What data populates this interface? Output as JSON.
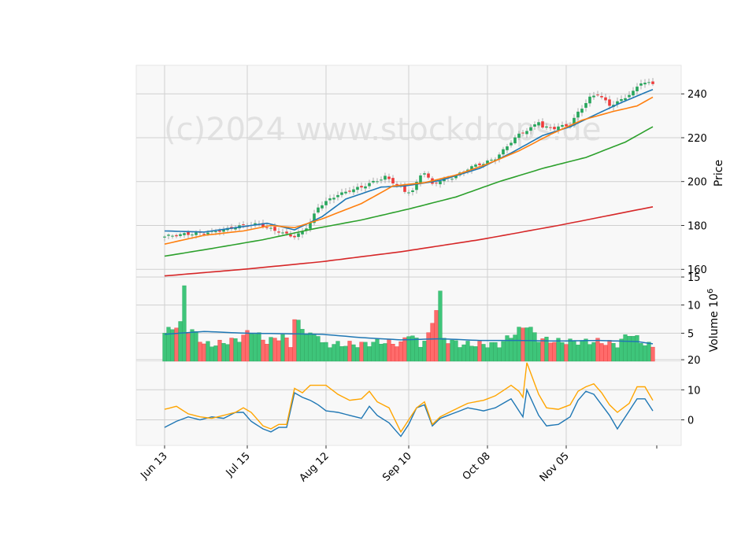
{
  "watermark": "(c)2024 www.stockdrops.de",
  "colors": {
    "up": "#26a65b",
    "down": "#ef3b3b",
    "ma_fast": "#1f77b4",
    "ma_mid": "#ff7f0e",
    "ma_slow": "#2ca02c",
    "ma_long": "#d62728",
    "vol_avg": "#1f77b4",
    "osc_a": "#1f77b4",
    "osc_b": "#ffa500",
    "panel_bg": "#f8f8f8",
    "grid": "#d0d0d0"
  },
  "chart_data": {
    "type": "candlestick",
    "x_tick_labels": [
      "Jun 13",
      "Jul 15",
      "Aug 12",
      "Sep 10",
      "Oct 08",
      "Nov 05"
    ],
    "x_tick_index": [
      0,
      21,
      41,
      62,
      82,
      102
    ],
    "n_sessions": 125,
    "price": {
      "ylabel": "Price",
      "yticks": [
        160,
        180,
        200,
        220,
        240
      ],
      "ylim": [
        156.5,
        253
      ],
      "open_close_anchors": [
        [
          0,
          174.5
        ],
        [
          5,
          176.5
        ],
        [
          10,
          176.0
        ],
        [
          15,
          178.5
        ],
        [
          20,
          179.5
        ],
        [
          24,
          181.0
        ],
        [
          27,
          178.5
        ],
        [
          30,
          176.0
        ],
        [
          33,
          175.0
        ],
        [
          35,
          177.5
        ],
        [
          37,
          181.5
        ],
        [
          39,
          188.0
        ],
        [
          41,
          190.5
        ],
        [
          44,
          194.5
        ],
        [
          47,
          196.0
        ],
        [
          50,
          197.0
        ],
        [
          53,
          200.0
        ],
        [
          56,
          202.5
        ],
        [
          58,
          199.5
        ],
        [
          60,
          197.0
        ],
        [
          61,
          195.0
        ],
        [
          63,
          196.0
        ],
        [
          65,
          203.5
        ],
        [
          66,
          204.5
        ],
        [
          68,
          198.5
        ],
        [
          70,
          200.0
        ],
        [
          73,
          202.0
        ],
        [
          77,
          206.0
        ],
        [
          81,
          208.0
        ],
        [
          84,
          211.0
        ],
        [
          88,
          218.0
        ],
        [
          90,
          221.0
        ],
        [
          93,
          224.5
        ],
        [
          95,
          228.0
        ],
        [
          96,
          225.0
        ],
        [
          99,
          224.0
        ],
        [
          103,
          226.0
        ],
        [
          105,
          232.0
        ],
        [
          108,
          238.0
        ],
        [
          110,
          239.5
        ],
        [
          113,
          235.0
        ],
        [
          116,
          237.5
        ],
        [
          119,
          240.5
        ],
        [
          121,
          245.0
        ],
        [
          124,
          245.0
        ]
      ]
    },
    "moving_averages": [
      {
        "color_key": "ma_fast",
        "points": [
          [
            0,
            177.5
          ],
          [
            10,
            177.0
          ],
          [
            20,
            179.5
          ],
          [
            26,
            181.0
          ],
          [
            33,
            178.0
          ],
          [
            40,
            184.0
          ],
          [
            46,
            192.0
          ],
          [
            55,
            197.5
          ],
          [
            61,
            198.0
          ],
          [
            70,
            200.5
          ],
          [
            80,
            206.0
          ],
          [
            88,
            213.0
          ],
          [
            96,
            221.0
          ],
          [
            103,
            225.0
          ],
          [
            110,
            231.0
          ],
          [
            116,
            236.0
          ],
          [
            124,
            242.0
          ]
        ]
      },
      {
        "color_key": "ma_mid",
        "points": [
          [
            0,
            171.5
          ],
          [
            10,
            175.5
          ],
          [
            20,
            177.5
          ],
          [
            27,
            180.0
          ],
          [
            33,
            179.0
          ],
          [
            40,
            183.0
          ],
          [
            50,
            190.0
          ],
          [
            58,
            198.0
          ],
          [
            66,
            199.5
          ],
          [
            74,
            203.0
          ],
          [
            82,
            208.0
          ],
          [
            90,
            214.0
          ],
          [
            98,
            221.5
          ],
          [
            106,
            228.0
          ],
          [
            114,
            232.0
          ],
          [
            120,
            234.5
          ],
          [
            124,
            238.5
          ]
        ]
      },
      {
        "color_key": "ma_slow",
        "points": [
          [
            0,
            166.0
          ],
          [
            12,
            169.5
          ],
          [
            25,
            173.5
          ],
          [
            38,
            178.5
          ],
          [
            50,
            182.5
          ],
          [
            62,
            187.5
          ],
          [
            74,
            193.0
          ],
          [
            85,
            200.0
          ],
          [
            96,
            206.0
          ],
          [
            107,
            211.0
          ],
          [
            117,
            218.0
          ],
          [
            124,
            225.0
          ]
        ]
      },
      {
        "color_key": "ma_long",
        "points": [
          [
            0,
            157.0
          ],
          [
            20,
            160.0
          ],
          [
            40,
            163.5
          ],
          [
            60,
            168.0
          ],
          [
            80,
            173.5
          ],
          [
            100,
            180.0
          ],
          [
            124,
            188.5
          ]
        ]
      }
    ],
    "volume": {
      "ylabel": "Volume  10",
      "ylabel_exponent": "6",
      "yticks": [
        5,
        10,
        15
      ],
      "ylim": [
        0,
        15
      ],
      "anchors": [
        [
          0,
          5.0
        ],
        [
          2,
          6.0
        ],
        [
          4,
          6.5
        ],
        [
          5,
          13.5
        ],
        [
          6,
          5.5
        ],
        [
          8,
          5.0
        ],
        [
          10,
          3.0
        ],
        [
          13,
          3.0
        ],
        [
          16,
          3.5
        ],
        [
          19,
          4.0
        ],
        [
          20,
          4.5
        ],
        [
          22,
          5.5
        ],
        [
          24,
          4.5
        ],
        [
          26,
          3.5
        ],
        [
          30,
          4.5
        ],
        [
          32,
          3.0
        ],
        [
          33,
          7.5
        ],
        [
          35,
          6.0
        ],
        [
          37,
          4.5
        ],
        [
          39,
          5.0
        ],
        [
          40,
          3.0
        ],
        [
          45,
          3.0
        ],
        [
          50,
          3.0
        ],
        [
          55,
          3.5
        ],
        [
          60,
          3.0
        ],
        [
          62,
          5.0
        ],
        [
          65,
          3.0
        ],
        [
          67,
          4.5
        ],
        [
          68,
          7.0
        ],
        [
          70,
          12.0
        ],
        [
          71,
          4.0
        ],
        [
          75,
          3.0
        ],
        [
          80,
          3.0
        ],
        [
          85,
          3.0
        ],
        [
          90,
          5.5
        ],
        [
          92,
          6.5
        ],
        [
          95,
          4.0
        ],
        [
          100,
          3.5
        ],
        [
          104,
          3.5
        ],
        [
          110,
          3.5
        ],
        [
          115,
          3.0
        ],
        [
          118,
          5.0
        ],
        [
          121,
          3.5
        ],
        [
          124,
          2.5
        ]
      ],
      "avg_points": [
        [
          0,
          4.8
        ],
        [
          10,
          5.3
        ],
        [
          20,
          5.0
        ],
        [
          30,
          4.9
        ],
        [
          40,
          4.8
        ],
        [
          50,
          4.2
        ],
        [
          60,
          3.8
        ],
        [
          70,
          4.0
        ],
        [
          80,
          3.7
        ],
        [
          90,
          3.7
        ],
        [
          100,
          3.6
        ],
        [
          110,
          3.7
        ],
        [
          120,
          3.5
        ],
        [
          124,
          3.1
        ]
      ]
    },
    "oscillator": {
      "yticks": [
        0,
        10,
        20
      ],
      "ylim": [
        -8.5,
        19.5
      ],
      "lines": [
        {
          "color_key": "osc_a",
          "points": [
            [
              0,
              -2.5
            ],
            [
              3,
              -0.5
            ],
            [
              6,
              1.0
            ],
            [
              9,
              0.0
            ],
            [
              12,
              1.0
            ],
            [
              15,
              0.5
            ],
            [
              18,
              2.5
            ],
            [
              20,
              2.5
            ],
            [
              22,
              -0.5
            ],
            [
              25,
              -3.0
            ],
            [
              27,
              -4.0
            ],
            [
              29,
              -2.5
            ],
            [
              31,
              -2.5
            ],
            [
              33,
              9.0
            ],
            [
              35,
              7.5
            ],
            [
              37,
              6.5
            ],
            [
              39,
              5.0
            ],
            [
              41,
              3.0
            ],
            [
              44,
              2.5
            ],
            [
              47,
              1.5
            ],
            [
              50,
              0.5
            ],
            [
              52,
              4.5
            ],
            [
              54,
              1.5
            ],
            [
              57,
              -1.0
            ],
            [
              60,
              -5.5
            ],
            [
              62,
              -1.5
            ],
            [
              64,
              4.0
            ],
            [
              66,
              5.0
            ],
            [
              68,
              -2.0
            ],
            [
              70,
              0.5
            ],
            [
              73,
              2.0
            ],
            [
              77,
              4.0
            ],
            [
              81,
              3.0
            ],
            [
              84,
              4.0
            ],
            [
              88,
              7.0
            ],
            [
              91,
              1.0
            ],
            [
              92,
              10.0
            ],
            [
              95,
              1.5
            ],
            [
              97,
              -2.0
            ],
            [
              100,
              -1.5
            ],
            [
              103,
              1.0
            ],
            [
              105,
              6.5
            ],
            [
              107,
              9.5
            ],
            [
              109,
              8.5
            ],
            [
              111,
              5.0
            ],
            [
              113,
              1.5
            ],
            [
              115,
              -3.0
            ],
            [
              118,
              3.0
            ],
            [
              120,
              7.0
            ],
            [
              122,
              7.0
            ],
            [
              124,
              3.0
            ]
          ]
        },
        {
          "color_key": "osc_b",
          "points": [
            [
              0,
              3.5
            ],
            [
              3,
              4.5
            ],
            [
              6,
              2.0
            ],
            [
              9,
              1.0
            ],
            [
              12,
              0.5
            ],
            [
              15,
              1.5
            ],
            [
              18,
              2.5
            ],
            [
              20,
              4.0
            ],
            [
              22,
              2.5
            ],
            [
              25,
              -2.0
            ],
            [
              27,
              -3.0
            ],
            [
              29,
              -1.5
            ],
            [
              31,
              -1.5
            ],
            [
              33,
              10.5
            ],
            [
              35,
              9.0
            ],
            [
              37,
              11.5
            ],
            [
              41,
              11.5
            ],
            [
              44,
              8.5
            ],
            [
              47,
              6.5
            ],
            [
              50,
              7.0
            ],
            [
              52,
              9.5
            ],
            [
              54,
              6.0
            ],
            [
              57,
              4.0
            ],
            [
              60,
              -4.0
            ],
            [
              62,
              0.0
            ],
            [
              64,
              4.0
            ],
            [
              66,
              6.0
            ],
            [
              68,
              -1.5
            ],
            [
              70,
              1.0
            ],
            [
              73,
              3.0
            ],
            [
              77,
              5.5
            ],
            [
              81,
              6.5
            ],
            [
              84,
              8.0
            ],
            [
              88,
              11.5
            ],
            [
              90,
              9.5
            ],
            [
              91,
              7.5
            ],
            [
              92,
              19.0
            ],
            [
              95,
              8.5
            ],
            [
              97,
              4.0
            ],
            [
              100,
              3.5
            ],
            [
              103,
              5.0
            ],
            [
              105,
              9.5
            ],
            [
              107,
              11.0
            ],
            [
              109,
              12.0
            ],
            [
              111,
              9.0
            ],
            [
              113,
              5.0
            ],
            [
              115,
              2.5
            ],
            [
              118,
              5.5
            ],
            [
              120,
              11.0
            ],
            [
              122,
              11.0
            ],
            [
              124,
              6.5
            ]
          ]
        }
      ]
    }
  }
}
